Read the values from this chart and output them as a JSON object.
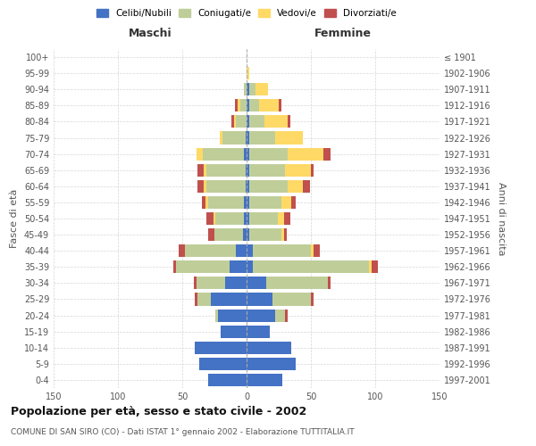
{
  "age_groups": [
    "0-4",
    "5-9",
    "10-14",
    "15-19",
    "20-24",
    "25-29",
    "30-34",
    "35-39",
    "40-44",
    "45-49",
    "50-54",
    "55-59",
    "60-64",
    "65-69",
    "70-74",
    "75-79",
    "80-84",
    "85-89",
    "90-94",
    "95-99",
    "100+"
  ],
  "birth_years": [
    "1997-2001",
    "1992-1996",
    "1987-1991",
    "1982-1986",
    "1977-1981",
    "1972-1976",
    "1967-1971",
    "1962-1966",
    "1957-1961",
    "1952-1956",
    "1947-1951",
    "1942-1946",
    "1937-1941",
    "1932-1936",
    "1927-1931",
    "1922-1926",
    "1917-1921",
    "1912-1916",
    "1907-1911",
    "1902-1906",
    "≤ 1901"
  ],
  "male": {
    "celibi": [
      30,
      37,
      40,
      20,
      22,
      28,
      17,
      13,
      8,
      3,
      2,
      2,
      1,
      1,
      2,
      1,
      0,
      0,
      0,
      0,
      0
    ],
    "coniugati": [
      0,
      0,
      0,
      0,
      2,
      10,
      22,
      42,
      40,
      22,
      22,
      28,
      30,
      30,
      32,
      18,
      8,
      5,
      2,
      0,
      0
    ],
    "vedovi": [
      0,
      0,
      0,
      0,
      0,
      0,
      0,
      0,
      0,
      0,
      2,
      2,
      2,
      2,
      5,
      2,
      2,
      2,
      0,
      0,
      0
    ],
    "divorziati": [
      0,
      0,
      0,
      0,
      0,
      2,
      2,
      2,
      5,
      5,
      5,
      3,
      5,
      5,
      0,
      0,
      2,
      2,
      0,
      0,
      0
    ]
  },
  "female": {
    "nubili": [
      28,
      38,
      35,
      18,
      22,
      20,
      15,
      5,
      5,
      2,
      2,
      2,
      2,
      2,
      2,
      2,
      2,
      2,
      2,
      0,
      0
    ],
    "coniugate": [
      0,
      0,
      0,
      0,
      8,
      30,
      48,
      90,
      45,
      25,
      22,
      25,
      30,
      28,
      30,
      20,
      12,
      8,
      5,
      0,
      0
    ],
    "vedove": [
      0,
      0,
      0,
      0,
      0,
      0,
      0,
      2,
      2,
      2,
      5,
      8,
      12,
      20,
      28,
      22,
      18,
      15,
      10,
      2,
      0
    ],
    "divorziate": [
      0,
      0,
      0,
      0,
      2,
      2,
      2,
      5,
      5,
      2,
      5,
      3,
      5,
      2,
      5,
      0,
      2,
      2,
      0,
      0,
      0
    ]
  },
  "colors": {
    "celibi_nubili": "#4472C4",
    "coniugati": "#BFCE99",
    "vedovi": "#FFD966",
    "divorziati": "#C0504D"
  },
  "xlim": 150,
  "title": "Popolazione per età, sesso e stato civile - 2002",
  "subtitle": "COMUNE DI SAN SIRO (CO) - Dati ISTAT 1° gennaio 2002 - Elaborazione TUTTITALIA.IT",
  "ylabel_left": "Fasce di età",
  "ylabel_right": "Anni di nascita",
  "xlabel_left": "Maschi",
  "xlabel_right": "Femmine",
  "legend_labels": [
    "Celibi/Nubili",
    "Coniugati/e",
    "Vedovi/e",
    "Divorziati/e"
  ],
  "background_color": "#ffffff",
  "grid_color": "#cccccc"
}
